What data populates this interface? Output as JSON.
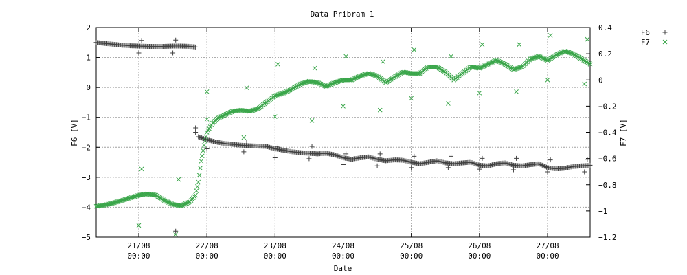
{
  "chart_data": {
    "type": "scatter",
    "title": "Data Pribram 1",
    "xlabel": "Date",
    "ylabel_left": "F6 [V]",
    "ylabel_right": "F7 [V]",
    "xlim": [
      "2020-08-20T09:00",
      "2020-08-27T15:00"
    ],
    "ylim_left": [
      -5,
      2
    ],
    "ylim_right": [
      -1.2,
      0.4
    ],
    "grid": true,
    "legend_position": "outside-right-top",
    "x_ticks": [
      {
        "date": "21/08",
        "time": "00:00",
        "x": "2020-08-21T00:00"
      },
      {
        "date": "22/08",
        "time": "00:00",
        "x": "2020-08-22T00:00"
      },
      {
        "date": "23/08",
        "time": "00:00",
        "x": "2020-08-23T00:00"
      },
      {
        "date": "24/08",
        "time": "00:00",
        "x": "2020-08-24T00:00"
      },
      {
        "date": "25/08",
        "time": "00:00",
        "x": "2020-08-25T00:00"
      },
      {
        "date": "26/08",
        "time": "00:00",
        "x": "2020-08-26T00:00"
      },
      {
        "date": "27/08",
        "time": "00:00",
        "x": "2020-08-27T00:00"
      }
    ],
    "y_ticks_left": [
      "2",
      "1",
      "0",
      "−1",
      "−2",
      "−3",
      "−4",
      "−5"
    ],
    "y_ticks_right": [
      "0.4",
      "0.2",
      "0",
      "−0.2",
      "−0.4",
      "−0.6",
      "−0.8",
      "−1",
      "−1.2"
    ],
    "series": [
      {
        "name": "F6",
        "axis": "left",
        "marker": "+",
        "color": "#404040",
        "points": [
          [
            "2020-08-20T09:00",
            1.5
          ],
          [
            "2020-08-20T12:00",
            1.47
          ],
          [
            "2020-08-20T15:00",
            1.44
          ],
          [
            "2020-08-20T18:00",
            1.41
          ],
          [
            "2020-08-20T21:00",
            1.39
          ],
          [
            "2020-08-21T00:00",
            1.38
          ],
          [
            "2020-08-21T03:00",
            1.37
          ],
          [
            "2020-08-21T06:00",
            1.37
          ],
          [
            "2020-08-21T09:00",
            1.37
          ],
          [
            "2020-08-21T12:00",
            1.38
          ],
          [
            "2020-08-21T15:00",
            1.38
          ],
          [
            "2020-08-21T18:00",
            1.37
          ],
          [
            "2020-08-21T20:00",
            1.35
          ],
          [
            "2020-08-21T21:00",
            -1.65
          ],
          [
            "2020-08-22T00:00",
            -1.75
          ],
          [
            "2020-08-22T03:00",
            -1.82
          ],
          [
            "2020-08-22T06:00",
            -1.87
          ],
          [
            "2020-08-22T09:00",
            -1.9
          ],
          [
            "2020-08-22T12:00",
            -1.93
          ],
          [
            "2020-08-22T15:00",
            -1.95
          ],
          [
            "2020-08-22T18:00",
            -1.96
          ],
          [
            "2020-08-22T21:00",
            -1.97
          ],
          [
            "2020-08-23T00:00",
            -2.05
          ],
          [
            "2020-08-23T03:00",
            -2.1
          ],
          [
            "2020-08-23T06:00",
            -2.15
          ],
          [
            "2020-08-23T09:00",
            -2.18
          ],
          [
            "2020-08-23T12:00",
            -2.2
          ],
          [
            "2020-08-23T15:00",
            -2.22
          ],
          [
            "2020-08-23T18:00",
            -2.2
          ],
          [
            "2020-08-23T21:00",
            -2.25
          ],
          [
            "2020-08-24T00:00",
            -2.35
          ],
          [
            "2020-08-24T03:00",
            -2.4
          ],
          [
            "2020-08-24T06:00",
            -2.35
          ],
          [
            "2020-08-24T09:00",
            -2.32
          ],
          [
            "2020-08-24T12:00",
            -2.4
          ],
          [
            "2020-08-24T15:00",
            -2.45
          ],
          [
            "2020-08-24T18:00",
            -2.42
          ],
          [
            "2020-08-24T21:00",
            -2.43
          ],
          [
            "2020-08-25T00:00",
            -2.5
          ],
          [
            "2020-08-25T03:00",
            -2.55
          ],
          [
            "2020-08-25T06:00",
            -2.5
          ],
          [
            "2020-08-25T09:00",
            -2.45
          ],
          [
            "2020-08-25T12:00",
            -2.52
          ],
          [
            "2020-08-25T15:00",
            -2.55
          ],
          [
            "2020-08-25T18:00",
            -2.52
          ],
          [
            "2020-08-25T21:00",
            -2.5
          ],
          [
            "2020-08-26T00:00",
            -2.6
          ],
          [
            "2020-08-26T03:00",
            -2.62
          ],
          [
            "2020-08-26T06:00",
            -2.55
          ],
          [
            "2020-08-26T09:00",
            -2.52
          ],
          [
            "2020-08-26T12:00",
            -2.6
          ],
          [
            "2020-08-26T15:00",
            -2.62
          ],
          [
            "2020-08-26T18:00",
            -2.58
          ],
          [
            "2020-08-26T21:00",
            -2.55
          ],
          [
            "2020-08-27T00:00",
            -2.68
          ],
          [
            "2020-08-27T03:00",
            -2.72
          ],
          [
            "2020-08-27T06:00",
            -2.7
          ],
          [
            "2020-08-27T09:00",
            -2.64
          ],
          [
            "2020-08-27T12:00",
            -2.62
          ],
          [
            "2020-08-27T15:00",
            -2.6
          ]
        ],
        "outliers": [
          [
            "2020-08-21T00:00",
            1.15
          ],
          [
            "2020-08-21T01:00",
            1.57
          ],
          [
            "2020-08-21T12:00",
            1.15
          ],
          [
            "2020-08-21T13:00",
            1.58
          ],
          [
            "2020-08-21T13:00",
            -4.8
          ],
          [
            "2020-08-21T20:00",
            -1.35
          ],
          [
            "2020-08-21T20:00",
            -1.5
          ],
          [
            "2020-08-22T00:00",
            -2.05
          ],
          [
            "2020-08-22T01:00",
            -1.72
          ],
          [
            "2020-08-22T13:00",
            -2.15
          ],
          [
            "2020-08-22T14:00",
            -1.82
          ],
          [
            "2020-08-23T00:00",
            -2.35
          ],
          [
            "2020-08-23T01:00",
            -1.97
          ],
          [
            "2020-08-23T12:00",
            -2.38
          ],
          [
            "2020-08-23T13:00",
            -1.97
          ],
          [
            "2020-08-24T00:00",
            -2.58
          ],
          [
            "2020-08-24T01:00",
            -2.22
          ],
          [
            "2020-08-24T12:00",
            -2.62
          ],
          [
            "2020-08-24T13:00",
            -2.22
          ],
          [
            "2020-08-25T00:00",
            -2.68
          ],
          [
            "2020-08-25T01:00",
            -2.3
          ],
          [
            "2020-08-25T13:00",
            -2.68
          ],
          [
            "2020-08-25T14:00",
            -2.3
          ],
          [
            "2020-08-26T00:00",
            -2.73
          ],
          [
            "2020-08-26T01:00",
            -2.37
          ],
          [
            "2020-08-26T12:00",
            -2.75
          ],
          [
            "2020-08-26T13:00",
            -2.37
          ],
          [
            "2020-08-27T00:00",
            -2.82
          ],
          [
            "2020-08-27T01:00",
            -2.42
          ],
          [
            "2020-08-27T13:00",
            -2.82
          ],
          [
            "2020-08-27T14:00",
            -2.4
          ]
        ]
      },
      {
        "name": "F7",
        "axis": "right",
        "marker": "x",
        "color": "#3aa64a",
        "points": [
          [
            "2020-08-20T09:00",
            -0.965
          ],
          [
            "2020-08-20T12:00",
            -0.955
          ],
          [
            "2020-08-20T15:00",
            -0.94
          ],
          [
            "2020-08-20T18:00",
            -0.92
          ],
          [
            "2020-08-20T21:00",
            -0.9
          ],
          [
            "2020-08-21T00:00",
            -0.88
          ],
          [
            "2020-08-21T03:00",
            -0.87
          ],
          [
            "2020-08-21T06:00",
            -0.88
          ],
          [
            "2020-08-21T09:00",
            -0.92
          ],
          [
            "2020-08-21T12:00",
            -0.95
          ],
          [
            "2020-08-21T15:00",
            -0.96
          ],
          [
            "2020-08-21T18:00",
            -0.93
          ],
          [
            "2020-08-21T20:00",
            -0.88
          ],
          [
            "2020-08-21T21:00",
            -0.78
          ],
          [
            "2020-08-21T22:00",
            -0.62
          ],
          [
            "2020-08-21T23:00",
            -0.5
          ],
          [
            "2020-08-22T00:00",
            -0.4
          ],
          [
            "2020-08-22T02:00",
            -0.33
          ],
          [
            "2020-08-22T04:00",
            -0.29
          ],
          [
            "2020-08-22T06:00",
            -0.27
          ],
          [
            "2020-08-22T09:00",
            -0.24
          ],
          [
            "2020-08-22T12:00",
            -0.23
          ],
          [
            "2020-08-22T15:00",
            -0.24
          ],
          [
            "2020-08-22T18:00",
            -0.22
          ],
          [
            "2020-08-22T21:00",
            -0.17
          ],
          [
            "2020-08-23T00:00",
            -0.12
          ],
          [
            "2020-08-23T03:00",
            -0.1
          ],
          [
            "2020-08-23T06:00",
            -0.07
          ],
          [
            "2020-08-23T09:00",
            -0.03
          ],
          [
            "2020-08-23T12:00",
            -0.01
          ],
          [
            "2020-08-23T15:00",
            -0.02
          ],
          [
            "2020-08-23T18:00",
            -0.05
          ],
          [
            "2020-08-23T21:00",
            -0.02
          ],
          [
            "2020-08-24T00:00",
            0.0
          ],
          [
            "2020-08-24T03:00",
            0.0
          ],
          [
            "2020-08-24T06:00",
            0.03
          ],
          [
            "2020-08-24T09:00",
            0.05
          ],
          [
            "2020-08-24T12:00",
            0.03
          ],
          [
            "2020-08-24T15:00",
            -0.02
          ],
          [
            "2020-08-24T18:00",
            0.02
          ],
          [
            "2020-08-24T21:00",
            0.06
          ],
          [
            "2020-08-25T00:00",
            0.05
          ],
          [
            "2020-08-25T03:00",
            0.05
          ],
          [
            "2020-08-25T06:00",
            0.1
          ],
          [
            "2020-08-25T09:00",
            0.1
          ],
          [
            "2020-08-25T12:00",
            0.06
          ],
          [
            "2020-08-25T15:00",
            0.0
          ],
          [
            "2020-08-25T18:00",
            0.05
          ],
          [
            "2020-08-25T21:00",
            0.1
          ],
          [
            "2020-08-26T00:00",
            0.09
          ],
          [
            "2020-08-26T03:00",
            0.12
          ],
          [
            "2020-08-26T06:00",
            0.15
          ],
          [
            "2020-08-26T09:00",
            0.12
          ],
          [
            "2020-08-26T12:00",
            0.08
          ],
          [
            "2020-08-26T15:00",
            0.1
          ],
          [
            "2020-08-26T18:00",
            0.16
          ],
          [
            "2020-08-26T21:00",
            0.18
          ],
          [
            "2020-08-27T00:00",
            0.15
          ],
          [
            "2020-08-27T03:00",
            0.19
          ],
          [
            "2020-08-27T06:00",
            0.22
          ],
          [
            "2020-08-27T09:00",
            0.2
          ],
          [
            "2020-08-27T12:00",
            0.16
          ],
          [
            "2020-08-27T15:00",
            0.12
          ]
        ],
        "outliers": [
          [
            "2020-08-21T00:00",
            -1.11
          ],
          [
            "2020-08-21T01:00",
            -0.68
          ],
          [
            "2020-08-21T13:00",
            -1.18
          ],
          [
            "2020-08-21T14:00",
            -0.76
          ],
          [
            "2020-08-22T00:00",
            -0.3
          ],
          [
            "2020-08-22T00:00",
            -0.09
          ],
          [
            "2020-08-22T13:00",
            -0.44
          ],
          [
            "2020-08-22T14:00",
            -0.06
          ],
          [
            "2020-08-23T00:00",
            -0.28
          ],
          [
            "2020-08-23T01:00",
            0.12
          ],
          [
            "2020-08-23T13:00",
            -0.31
          ],
          [
            "2020-08-23T14:00",
            0.09
          ],
          [
            "2020-08-24T00:00",
            -0.2
          ],
          [
            "2020-08-24T01:00",
            0.18
          ],
          [
            "2020-08-24T13:00",
            -0.23
          ],
          [
            "2020-08-24T14:00",
            0.14
          ],
          [
            "2020-08-25T00:00",
            -0.14
          ],
          [
            "2020-08-25T01:00",
            0.23
          ],
          [
            "2020-08-25T13:00",
            -0.18
          ],
          [
            "2020-08-25T14:00",
            0.18
          ],
          [
            "2020-08-26T00:00",
            -0.1
          ],
          [
            "2020-08-26T01:00",
            0.27
          ],
          [
            "2020-08-26T13:00",
            -0.09
          ],
          [
            "2020-08-26T14:00",
            0.27
          ],
          [
            "2020-08-27T00:00",
            0.0
          ],
          [
            "2020-08-27T01:00",
            0.34
          ],
          [
            "2020-08-27T13:00",
            -0.03
          ],
          [
            "2020-08-27T14:00",
            0.31
          ]
        ]
      }
    ]
  }
}
